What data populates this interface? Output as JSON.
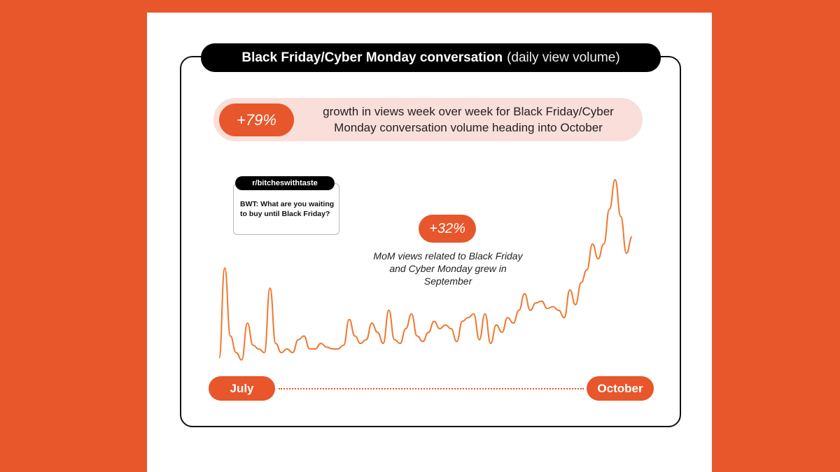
{
  "title": {
    "bold": "Black Friday/Cyber Monday conversation",
    "sub": "(daily view volume)"
  },
  "banner": {
    "stat": "+79%",
    "text": "growth in views week over week for Black Friday/Cyber Monday conversation volume heading into October"
  },
  "callout": {
    "tag": "r/bitcheswithtaste",
    "text": "BWT: What are you waiting to buy until Black Friday?"
  },
  "annotation": {
    "stat": "+32%",
    "text": "MoM views related to Black Friday and Cyber Monday grew in September"
  },
  "colors": {
    "accent": "#E8562B",
    "line": "#F0782F",
    "banner_bg": "#F9DEDA",
    "title_bg": "#000000"
  },
  "chart_data": {
    "type": "line",
    "title": "Black Friday/Cyber Monday conversation (daily view volume)",
    "x_start_label": "July",
    "x_end_label": "October",
    "y_axis": "unlabeled (relative daily view volume)",
    "grid": false,
    "values": [
      3,
      52,
      15,
      6,
      2,
      22,
      10,
      8,
      6,
      41,
      11,
      6,
      8,
      6,
      13,
      15,
      8,
      8,
      11,
      9,
      8,
      8,
      10,
      24,
      15,
      11,
      13,
      22,
      17,
      11,
      29,
      13,
      11,
      19,
      27,
      15,
      12,
      17,
      23,
      19,
      21,
      19,
      12,
      23,
      25,
      27,
      13,
      27,
      11,
      21,
      17,
      25,
      22,
      29,
      38,
      29,
      33,
      34,
      30,
      31,
      29,
      25,
      40,
      32,
      44,
      51,
      65,
      57,
      65,
      84,
      100,
      80,
      60,
      69
    ]
  }
}
